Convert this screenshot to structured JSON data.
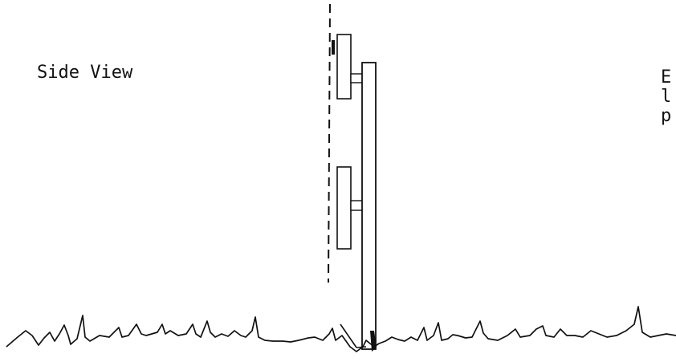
{
  "labels": {
    "side_view": "Side View",
    "edge_letters": [
      "E",
      "l",
      "p"
    ]
  },
  "colors": {
    "ink": "#111111",
    "background": "#ffffff"
  }
}
